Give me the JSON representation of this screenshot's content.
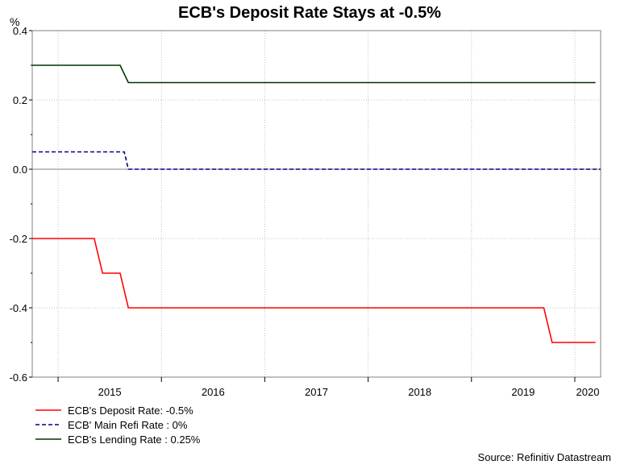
{
  "chart_data": {
    "type": "line",
    "title": "ECB's Deposit Rate Stays at -0.5%",
    "ylabel": "%",
    "ylim": [
      -0.6,
      0.4
    ],
    "yticks": [
      "0.4",
      "0.2",
      "0.0",
      "-0.2",
      "-0.4",
      "-0.6"
    ],
    "xlim": [
      2014.75,
      2020.25
    ],
    "xticks": [
      "2015",
      "2016",
      "2017",
      "2018",
      "2019",
      "2020"
    ],
    "grid": true,
    "legend_position": "bottom-left",
    "series": [
      {
        "name": "ECB's Deposit Rate: -0.5%",
        "color": "#ff0000",
        "style": "solid",
        "points": [
          [
            2014.75,
            -0.2
          ],
          [
            2015.35,
            -0.2
          ],
          [
            2015.43,
            -0.3
          ],
          [
            2015.6,
            -0.3
          ],
          [
            2015.68,
            -0.4
          ],
          [
            2019.7,
            -0.4
          ],
          [
            2019.78,
            -0.5
          ],
          [
            2020.2,
            -0.5
          ]
        ]
      },
      {
        "name": "ECB' Main Refi Rate : 0%",
        "color": "#00008b",
        "style": "dashed",
        "points": [
          [
            2014.75,
            0.05
          ],
          [
            2015.64,
            0.05
          ],
          [
            2015.68,
            0.0
          ],
          [
            2020.25,
            0.0
          ]
        ]
      },
      {
        "name": "ECB's Lending Rate : 0.25%",
        "color": "#003300",
        "style": "solid",
        "points": [
          [
            2014.75,
            0.3
          ],
          [
            2015.6,
            0.3
          ],
          [
            2015.68,
            0.25
          ],
          [
            2020.2,
            0.25
          ]
        ]
      }
    ],
    "source": "Source: Refinitiv Datastream"
  }
}
